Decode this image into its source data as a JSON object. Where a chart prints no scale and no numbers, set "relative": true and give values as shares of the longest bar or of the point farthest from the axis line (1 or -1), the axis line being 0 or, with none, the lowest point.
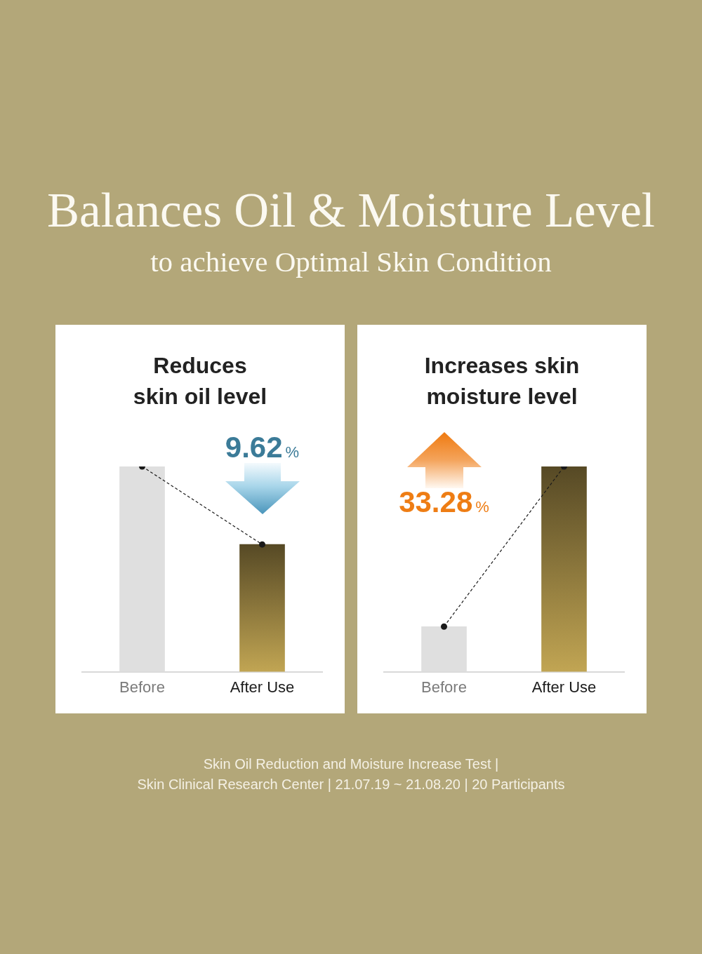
{
  "chart_data": [
    {
      "type": "other",
      "title": "Balances Oil & Moisture Level",
      "subtitle": "to achieve Optimal Skin Condition"
    },
    {
      "type": "bar",
      "title": "Reduces\nskin oil level",
      "categories": [
        "Before",
        "After Use"
      ],
      "relative": true,
      "marker": "circle",
      "line_style": "dashed",
      "series": [
        {
          "type": "bar",
          "colors": [
            "#dfdfdf",
            "#8a763b"
          ],
          "values": [
            1,
            0.62
          ]
        },
        {
          "type": "line",
          "color": "#1a1a1a",
          "values": [
            1,
            0.62
          ]
        }
      ],
      "annotations": [
        "9.62%"
      ]
    },
    {
      "type": "bar",
      "title": "Increases skin\nmoisture level",
      "categories": [
        "Before",
        "After Use"
      ],
      "relative": true,
      "marker": "circle",
      "line_style": "dashed",
      "series": [
        {
          "type": "bar",
          "colors": [
            "#dfdfdf",
            "#8a763b"
          ],
          "values": [
            0.22,
            1
          ]
        },
        {
          "type": "line",
          "color": "#1a1a1a",
          "values": [
            0.22,
            1
          ]
        }
      ],
      "annotations": [
        "33.28%"
      ]
    },
    {
      "type": "other",
      "annotations": [
        "Skin Oil Reduction and Moisture Increase Test |",
        "Skin Clinical Research Center | 21.07.19 ~ 21.08.20 | 20 Participants"
      ]
    }
  ]
}
